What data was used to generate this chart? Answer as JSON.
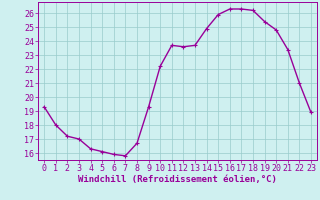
{
  "x": [
    0,
    1,
    2,
    3,
    4,
    5,
    6,
    7,
    8,
    9,
    10,
    11,
    12,
    13,
    14,
    15,
    16,
    17,
    18,
    19,
    20,
    21,
    22,
    23
  ],
  "y": [
    19.3,
    18.0,
    17.2,
    17.0,
    16.3,
    16.1,
    15.9,
    15.8,
    16.7,
    19.3,
    22.2,
    23.7,
    23.6,
    23.7,
    24.9,
    25.9,
    26.3,
    26.3,
    26.2,
    25.4,
    24.8,
    23.4,
    21.0,
    18.9
  ],
  "line_color": "#990099",
  "marker": "+",
  "marker_size": 3,
  "background_color": "#cff0f0",
  "grid_color": "#99cccc",
  "xlabel": "Windchill (Refroidissement éolien,°C)",
  "ylabel": "",
  "xlim": [
    -0.5,
    23.5
  ],
  "ylim": [
    15.5,
    26.8
  ],
  "yticks": [
    16,
    17,
    18,
    19,
    20,
    21,
    22,
    23,
    24,
    25,
    26
  ],
  "xticks": [
    0,
    1,
    2,
    3,
    4,
    5,
    6,
    7,
    8,
    9,
    10,
    11,
    12,
    13,
    14,
    15,
    16,
    17,
    18,
    19,
    20,
    21,
    22,
    23
  ],
  "tick_label_color": "#990099",
  "axis_color": "#990099",
  "xlabel_color": "#990099",
  "xlabel_fontsize": 6.5,
  "tick_fontsize": 6.0,
  "line_width": 1.0
}
